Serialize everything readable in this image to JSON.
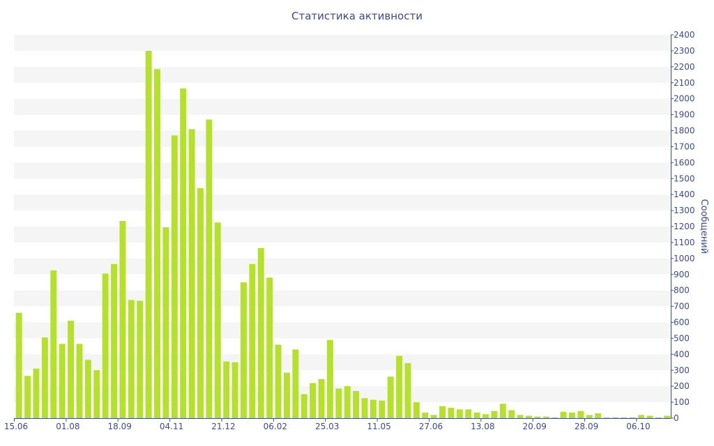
{
  "chart_data": {
    "type": "bar",
    "title": "Статистика активности",
    "ylabel": "Сообщений",
    "xlabel": "",
    "ylim": [
      0,
      2400
    ],
    "y_ticks": [
      0,
      100,
      200,
      300,
      400,
      500,
      600,
      700,
      800,
      900,
      1000,
      1100,
      1200,
      1300,
      1400,
      1500,
      1600,
      1700,
      1800,
      1900,
      2000,
      2100,
      2200,
      2300,
      2400
    ],
    "x_tick_labels": [
      "15.06",
      "01.08",
      "18.09",
      "04.11",
      "21.12",
      "06.02",
      "25.03",
      "11.05",
      "27.06",
      "13.08",
      "20.09",
      "28.09",
      "06.10"
    ],
    "x_tick_bar_index": [
      0,
      6,
      12,
      18,
      24,
      30,
      36,
      42,
      48,
      54,
      60,
      66,
      72
    ],
    "values": [
      660,
      265,
      310,
      505,
      925,
      465,
      610,
      465,
      365,
      300,
      905,
      965,
      1235,
      740,
      735,
      2300,
      2185,
      1195,
      1770,
      2065,
      1810,
      1440,
      1870,
      1225,
      355,
      350,
      850,
      965,
      1065,
      880,
      460,
      285,
      430,
      150,
      220,
      245,
      490,
      185,
      200,
      170,
      125,
      115,
      110,
      260,
      390,
      345,
      100,
      35,
      20,
      75,
      65,
      55,
      55,
      35,
      25,
      45,
      90,
      50,
      20,
      15,
      10,
      10,
      5,
      40,
      35,
      45,
      20,
      30,
      5,
      5,
      5,
      5,
      20,
      15,
      5,
      15
    ],
    "grid": true,
    "grid_style": "alternating-bands",
    "y_axis_side": "right",
    "colors": {
      "bar": "#b5e02c",
      "band": "#f5f5f5",
      "axis": "#3b4a8a",
      "text": "#3b4a8a"
    }
  }
}
